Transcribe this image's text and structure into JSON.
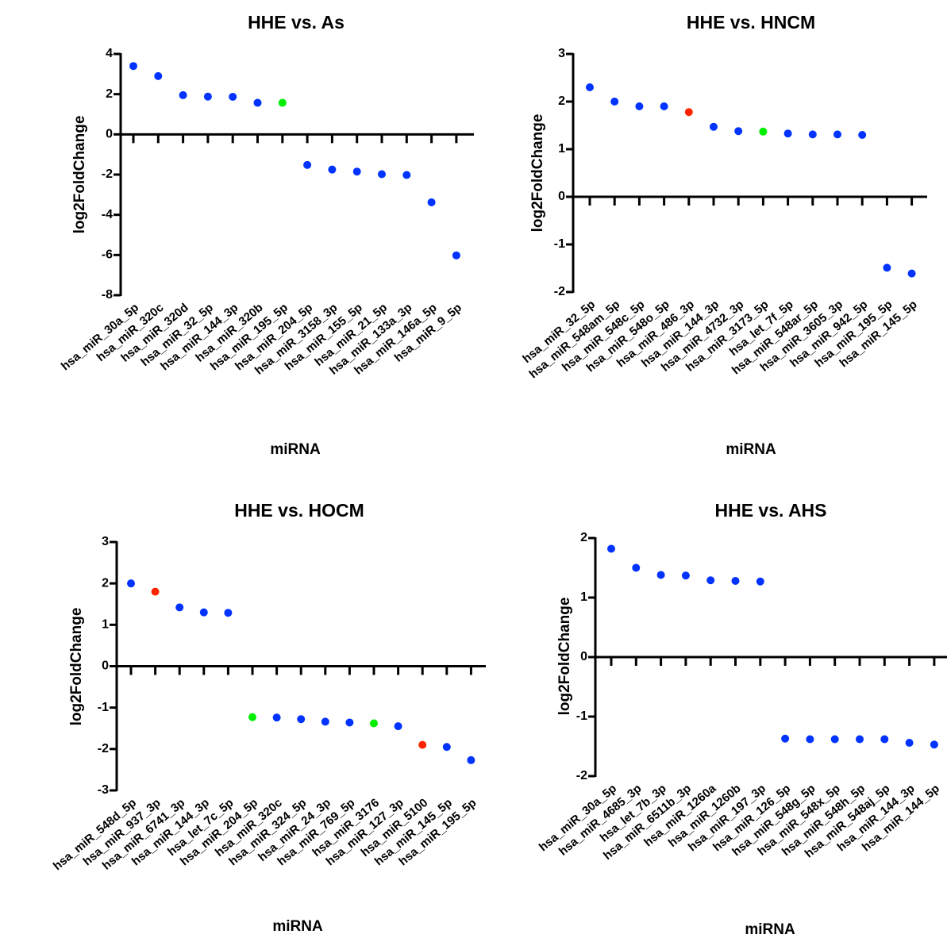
{
  "chart_data": [
    {
      "type": "scatter",
      "title": "HHE vs. As",
      "xlabel": "miRNA",
      "ylabel": "log2FoldChange",
      "ylim": [
        -8,
        4
      ],
      "yticks": [
        4,
        2,
        0,
        -2,
        -4,
        -6,
        -8
      ],
      "grid": false,
      "categories": [
        "hsa_miR_30a_5p",
        "hsa_miR_320c",
        "hsa_miR_320d",
        "hsa_miR_32_5p",
        "hsa_miR_144_3p",
        "hsa_miR_320b",
        "hsa_miR_195_5p",
        "hsa_miR_204_5p",
        "hsa_miR_3158_3p",
        "hsa_miR_155_5p",
        "hsa_miR_21_5p",
        "hsa_miR_133a_3p",
        "hsa_miR_146a_5p",
        "hsa_miR_9_5p"
      ],
      "values": [
        3.4,
        2.9,
        1.95,
        1.88,
        1.87,
        1.57,
        1.57,
        -1.52,
        -1.75,
        -1.85,
        -1.98,
        -2.02,
        -3.38,
        -6.02
      ],
      "colors": [
        "#0033ff",
        "#0033ff",
        "#0033ff",
        "#0033ff",
        "#0033ff",
        "#0033ff",
        "#00ee00",
        "#0033ff",
        "#0033ff",
        "#0033ff",
        "#0033ff",
        "#0033ff",
        "#0033ff",
        "#0033ff"
      ]
    },
    {
      "type": "scatter",
      "title": "HHE vs. HNCM",
      "xlabel": "miRNA",
      "ylabel": "log2FoldChange",
      "ylim": [
        -2,
        3
      ],
      "yticks": [
        3,
        2,
        1,
        0,
        -1,
        -2
      ],
      "grid": false,
      "categories": [
        "hsa_miR_32_5p",
        "hsa_miR_548am_5p",
        "hsa_miR_548c_5p",
        "hsa_miR_548o_5p",
        "hsa_miR_486_3p",
        "hsa_miR_144_3p",
        "hsa_miR_4732_3p",
        "hsa_miR_3173_5p",
        "hsa_let_7f_5p",
        "hsa_miR_548ar_5p",
        "hsa_miR_3605_3p",
        "hsa_miR_942_5p",
        "hsa_miR_195_5p",
        "hsa_miR_145_5p"
      ],
      "values": [
        2.3,
        2.0,
        1.9,
        1.9,
        1.78,
        1.47,
        1.38,
        1.37,
        1.33,
        1.31,
        1.31,
        1.3,
        -1.49,
        -1.61
      ],
      "colors": [
        "#0033ff",
        "#0033ff",
        "#0033ff",
        "#0033ff",
        "#ff2200",
        "#0033ff",
        "#0033ff",
        "#00ee00",
        "#0033ff",
        "#0033ff",
        "#0033ff",
        "#0033ff",
        "#0033ff",
        "#0033ff"
      ]
    },
    {
      "type": "scatter",
      "title": "HHE vs. HOCM",
      "xlabel": "miRNA",
      "ylabel": "log2FoldChange",
      "ylim": [
        -3,
        3
      ],
      "yticks": [
        3,
        2,
        1,
        0,
        -1,
        -2,
        -3
      ],
      "grid": false,
      "categories": [
        "hsa_miR_548d_5p",
        "hsa_miR_937_3p",
        "hsa_miR_6741_3p",
        "hsa_miR_144_3p",
        "hsa_let_7c_5p",
        "hsa_miR_204_5p",
        "hsa_miR_320c",
        "hsa_miR_324_5p",
        "hsa_miR_24_3p",
        "hsa_miR_769_5p",
        "hsa_miR_3176",
        "hsa_miR_127_3p",
        "hsa_miR_5100",
        "hsa_miR_145_5p",
        "hsa_miR_195_5p"
      ],
      "values": [
        2.0,
        1.8,
        1.42,
        1.3,
        1.29,
        -1.23,
        -1.24,
        -1.28,
        -1.34,
        -1.36,
        -1.38,
        -1.45,
        -1.9,
        -1.95,
        -2.27
      ],
      "colors": [
        "#0033ff",
        "#ff2200",
        "#0033ff",
        "#0033ff",
        "#0033ff",
        "#00ee00",
        "#0033ff",
        "#0033ff",
        "#0033ff",
        "#0033ff",
        "#00ee00",
        "#0033ff",
        "#ff2200",
        "#0033ff",
        "#0033ff"
      ]
    },
    {
      "type": "scatter",
      "title": "HHE vs. AHS",
      "xlabel": "miRNA",
      "ylabel": "log2FoldChange",
      "ylim": [
        -2,
        2
      ],
      "yticks": [
        2,
        1,
        0,
        -1,
        -2
      ],
      "grid": false,
      "categories": [
        "hsa_miR_30a_5p",
        "hsa_miR_4685_3p",
        "hsa_let_7b_3p",
        "hsa_miR_6511b_3p",
        "hsa_miR_1260a",
        "hsa_miR_1260b",
        "hsa_miR_197_3p",
        "hsa_miR_126_5p",
        "hsa_miR_548g_5p",
        "hsa_miR_548x_5p",
        "hsa_miR_548h_5p",
        "hsa_miR_548aj_5p",
        "hsa_miR_144_3p",
        "hsa_miR_144_5p"
      ],
      "values": [
        1.82,
        1.5,
        1.38,
        1.37,
        1.29,
        1.28,
        1.27,
        -1.37,
        -1.38,
        -1.38,
        -1.38,
        -1.38,
        -1.44,
        -1.47
      ],
      "colors": [
        "#0033ff",
        "#0033ff",
        "#0033ff",
        "#0033ff",
        "#0033ff",
        "#0033ff",
        "#0033ff",
        "#0033ff",
        "#0033ff",
        "#0033ff",
        "#0033ff",
        "#0033ff",
        "#0033ff",
        "#0033ff"
      ]
    }
  ]
}
